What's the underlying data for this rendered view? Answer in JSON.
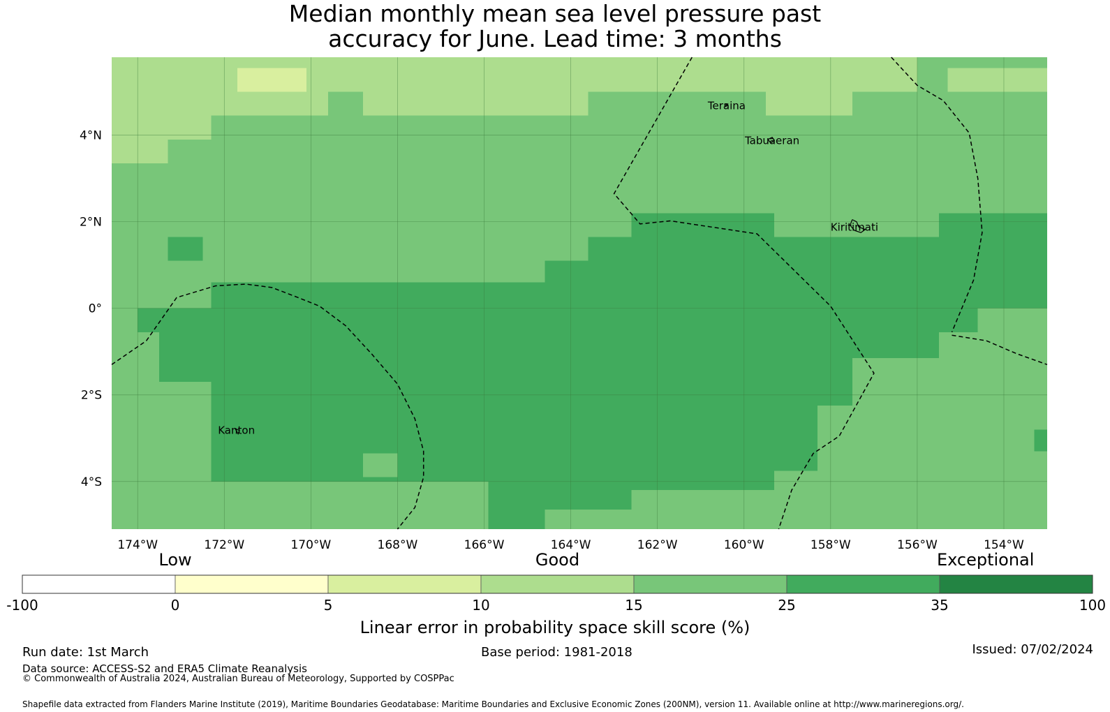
{
  "title_line1": "Median monthly mean sea level pressure past",
  "title_line2": "accuracy for June. Lead time: 3 months",
  "map": {
    "lon_range": [
      -174.6,
      -153.0
    ],
    "lat_range": [
      -5.1,
      5.8
    ],
    "lon_ticks": [
      {
        "value": -174,
        "label": "174°W"
      },
      {
        "value": -172,
        "label": "172°W"
      },
      {
        "value": -170,
        "label": "170°W"
      },
      {
        "value": -168,
        "label": "168°W"
      },
      {
        "value": -166,
        "label": "166°W"
      },
      {
        "value": -164,
        "label": "164°W"
      },
      {
        "value": -162,
        "label": "162°W"
      },
      {
        "value": -160,
        "label": "160°W"
      },
      {
        "value": -158,
        "label": "158°W"
      },
      {
        "value": -156,
        "label": "156°W"
      },
      {
        "value": -154,
        "label": "154°W"
      }
    ],
    "lat_ticks": [
      {
        "value": 4,
        "label": "4°N"
      },
      {
        "value": 2,
        "label": "2°N"
      },
      {
        "value": 0,
        "label": "0°"
      },
      {
        "value": -2,
        "label": "2°S"
      },
      {
        "value": -4,
        "label": "4°S"
      }
    ],
    "places": [
      {
        "name": "Teraina",
        "lon": -160.4,
        "lat": 4.68
      },
      {
        "name": "Tabuaeran",
        "lon": -159.35,
        "lat": 3.87
      },
      {
        "name": "Kiritimati",
        "lon": -157.45,
        "lat": 1.87
      },
      {
        "name": "Kanton",
        "lon": -171.72,
        "lat": -2.82
      }
    ],
    "skill_levels": [
      {
        "range": "5-10",
        "color": "#d9ef9f"
      },
      {
        "range": "10-15",
        "color": "#addd8e"
      },
      {
        "range": "15-25",
        "color": "#78c679"
      },
      {
        "range": "25-35",
        "color": "#41ab5d"
      }
    ]
  },
  "colorbar": {
    "category_labels": [
      {
        "text": "Low",
        "at": 1
      },
      {
        "text": "Good",
        "at": 3.5
      },
      {
        "text": "Exceptional",
        "at": 6.3
      }
    ],
    "ticks": [
      "-100",
      "0",
      "5",
      "10",
      "15",
      "25",
      "35",
      "100"
    ],
    "colors": [
      "#ffffff",
      "#ffffcc",
      "#d9ef9f",
      "#addd8e",
      "#78c679",
      "#41ab5d",
      "#238443"
    ],
    "label": "Linear error in probability space skill score (%)"
  },
  "footer": {
    "run_date": "Run date: 1st March",
    "base_period": "Base period: 1981-2018",
    "issued": "Issued: 07/02/2024",
    "data_source": "Data source: ACCESS-S2 and ERA5 Climate Reanalysis",
    "copyright": "© Commonwealth of Australia 2024, Australian Bureau of Meteorology, Supported by COSPPac",
    "shapefile": "Shapefile data extracted from Flanders Marine Institute (2019), Maritime Boundaries Geodatabase: Maritime Boundaries and Exclusive Economic Zones (200NM), version 11. Available online at http://www.marineregions.org/."
  }
}
